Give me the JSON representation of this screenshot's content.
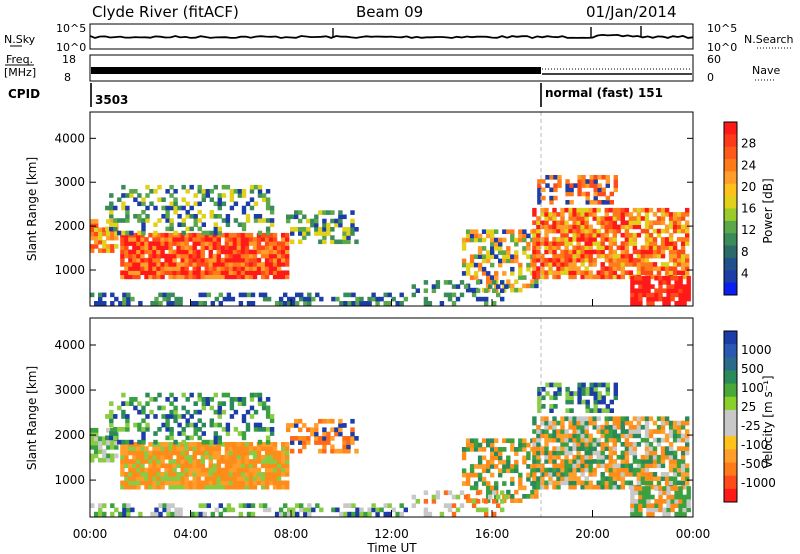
{
  "header": {
    "station": "Clyde River (fitACF)",
    "beam": "Beam 09",
    "date": "01/Jan/2014"
  },
  "colors": {
    "red": "#ff2a1a",
    "orange": "#ff8c1a",
    "green": "#3aa040",
    "light_green": "#88cc44",
    "blue": "#1c3ca8"
  },
  "chart_data": [
    {
      "type": "line",
      "panel": "noise",
      "left_label": "N.Sky",
      "right_label": "N.Search",
      "left_ticks": [
        "10^5",
        "10^0"
      ],
      "right_ticks": [
        "10^5",
        "10^0"
      ]
    },
    {
      "type": "line",
      "panel": "frequency",
      "left_label": "Freq.",
      "left_unit": "[MHz]",
      "right_label": "Nave",
      "left_ticks": [
        "18",
        "8"
      ],
      "right_ticks": [
        "60",
        "0"
      ]
    },
    {
      "type": "table",
      "panel": "cpid",
      "label": "CPID",
      "segments": [
        {
          "start_hour": 0,
          "end_hour": 18,
          "text": "3503"
        },
        {
          "start_hour": 18,
          "end_hour": 24,
          "text": "normal (fast) 151"
        }
      ]
    },
    {
      "type": "heatmap",
      "panel": "power",
      "ylabel": "Slant Range [km]",
      "xlim": [
        0,
        24
      ],
      "ylim": [
        180,
        4600
      ],
      "yticks": [
        1000,
        2000,
        3000,
        4000
      ],
      "colorbar": {
        "label": "Power [dB]",
        "ticks": [
          "28",
          "24",
          "20",
          "16",
          "12",
          "8",
          "4"
        ],
        "range": [
          0,
          30
        ]
      }
    },
    {
      "type": "heatmap",
      "panel": "velocity",
      "ylabel": "Slant Range [km]",
      "xlabel": "Time UT",
      "xlim": [
        0,
        24
      ],
      "ylim": [
        180,
        4600
      ],
      "yticks": [
        1000,
        2000,
        3000,
        4000
      ],
      "xtick_labels": [
        "00:00",
        "04:00",
        "08:00",
        "12:00",
        "16:00",
        "20:00",
        "00:00"
      ],
      "colorbar": {
        "label": "Velocity [m s⁻¹]",
        "ticks": [
          "1000",
          "500",
          "100",
          "25",
          "-25",
          "-100",
          "-500",
          "-1000"
        ]
      }
    }
  ]
}
